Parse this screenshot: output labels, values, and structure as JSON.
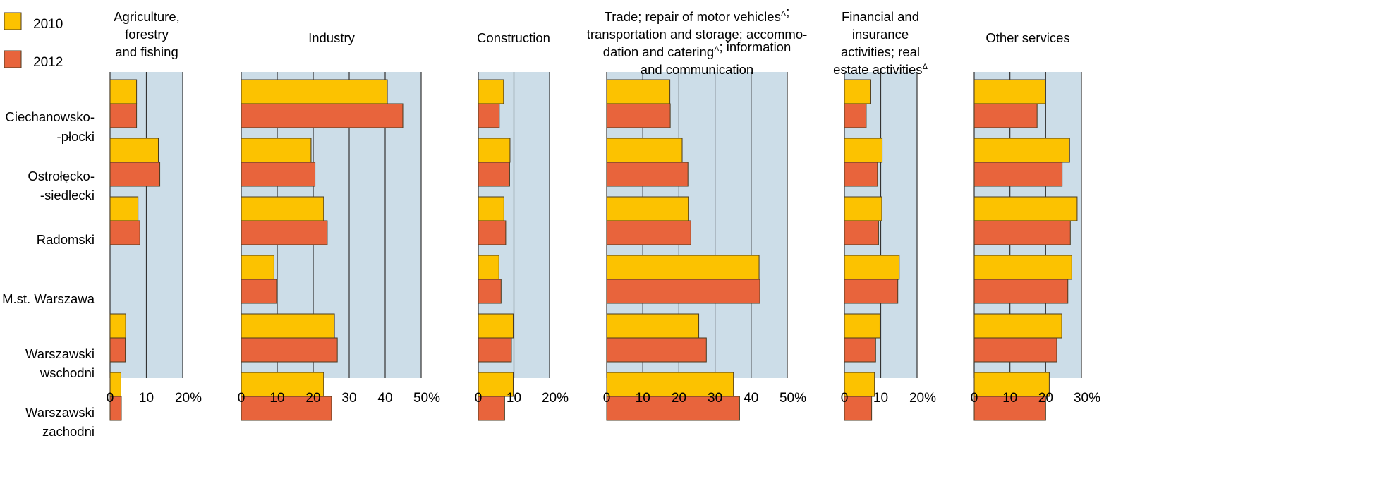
{
  "legend": [
    {
      "label": "2010",
      "color": "#fcc200"
    },
    {
      "label": "2012",
      "color": "#e8643c"
    }
  ],
  "colors": {
    "panel_background": "#ccdde8",
    "grid": "#333333",
    "bar_border": "#4a3a20"
  },
  "chart_data": {
    "type": "bar",
    "orientation": "horizontal",
    "categories": [
      [
        "Ciechanowsko-",
        "-płocki"
      ],
      [
        "Ostrołęcko-",
        "-siedlecki"
      ],
      [
        "Radomski"
      ],
      [
        "M.st. Warszawa"
      ],
      [
        "Warszawski",
        "wschodni"
      ],
      [
        "Warszawski",
        "zachodni"
      ]
    ],
    "series_names": [
      "2010",
      "2012"
    ],
    "panels": [
      {
        "title_lines": [
          "Agriculture,",
          "forestry",
          "and fishing"
        ],
        "ticks": [
          "0",
          "10",
          "20%"
        ],
        "xlim": [
          0,
          20
        ],
        "series": [
          {
            "name": "2010",
            "values": [
              7.3,
              13.3,
              7.7,
              0,
              4.3,
              3.0
            ]
          },
          {
            "name": "2012",
            "values": [
              7.3,
              13.7,
              8.2,
              0,
              4.2,
              3.1
            ]
          }
        ]
      },
      {
        "title_lines": [
          "Industry"
        ],
        "ticks": [
          "0",
          "10",
          "20",
          "30",
          "40",
          "50%"
        ],
        "xlim": [
          0,
          50
        ],
        "series": [
          {
            "name": "2010",
            "values": [
              40.6,
              19.4,
              22.9,
              9.1,
              25.9,
              22.9
            ]
          },
          {
            "name": "2012",
            "values": [
              44.9,
              20.5,
              23.9,
              9.8,
              26.7,
              25.1
            ]
          }
        ]
      },
      {
        "title_lines": [
          "Construction"
        ],
        "ticks": [
          "0",
          "10",
          "20%"
        ],
        "xlim": [
          0,
          20
        ],
        "series": [
          {
            "name": "2010",
            "values": [
              7.1,
              8.9,
              7.2,
              5.8,
              9.8,
              9.8
            ]
          },
          {
            "name": "2012",
            "values": [
              5.9,
              8.8,
              7.7,
              6.4,
              9.3,
              7.4
            ]
          }
        ]
      },
      {
        "title_lines": [
          "Trade; repair of motor vehiclesΔ;",
          "transportation and storage; accommo-",
          "dation and cateringΔ; information",
          "and communication"
        ],
        "ticks": [
          "0",
          "10",
          "20",
          "30",
          "40",
          "50%"
        ],
        "xlim": [
          0,
          50
        ],
        "series": [
          {
            "name": "2010",
            "values": [
              17.5,
              20.9,
              22.6,
              42.2,
              25.5,
              35.1
            ]
          },
          {
            "name": "2012",
            "values": [
              17.6,
              22.5,
              23.3,
              42.4,
              27.6,
              36.8
            ]
          }
        ]
      },
      {
        "title_lines": [
          "Financial and",
          "insurance",
          "activities; real",
          "estate activitiesΔ"
        ],
        "ticks": [
          "0",
          "10",
          "20%"
        ],
        "xlim": [
          0,
          20
        ],
        "series": [
          {
            "name": "2010",
            "values": [
              7.1,
              10.4,
              10.3,
              15.1,
              9.8,
              8.3
            ]
          },
          {
            "name": "2012",
            "values": [
              6.0,
              9.1,
              9.4,
              14.7,
              8.6,
              7.5
            ]
          }
        ]
      },
      {
        "title_lines": [
          "Other services"
        ],
        "ticks": [
          "0",
          "10",
          "20",
          "30%"
        ],
        "xlim": [
          0,
          30
        ],
        "series": [
          {
            "name": "2010",
            "values": [
              19.9,
              26.7,
              28.8,
              27.3,
              24.5,
              21.0
            ]
          },
          {
            "name": "2012",
            "values": [
              17.6,
              24.6,
              26.9,
              26.2,
              23.1,
              20.0
            ]
          }
        ]
      }
    ]
  }
}
